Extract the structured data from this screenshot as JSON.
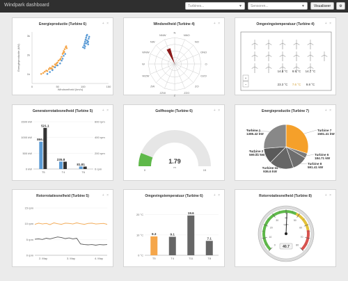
{
  "app": {
    "title": "Windpark dashboard"
  },
  "toolbar": {
    "select1": {
      "placeholder": "Turbines..."
    },
    "select2": {
      "placeholder": "Sensoren..."
    },
    "visualize_label": "Visualiseer",
    "settings_icon": "gear-icon"
  },
  "panels": [
    {
      "title": "Energieproductie (Turbine 6)"
    },
    {
      "title": "Windsnelheid (Turbine 4)"
    },
    {
      "title": "Omgevingstemperatuur (Turbine 4)"
    },
    {
      "title": "Generatorrotatiesnelheid (Turbine 5)"
    },
    {
      "title": "Golfhoogte (Turbine 6)"
    },
    {
      "title": "Energieproductie (Turbine 7)"
    },
    {
      "title": "Rotorrotatiesnelheid (Turbine 5)"
    },
    {
      "title": "Omgevingstemperatuur (Turbine 6)"
    },
    {
      "title": "Rotorrotatiesnelheid (Turbine 8)"
    }
  ],
  "panel_controls": "+ ×",
  "chart_data": [
    {
      "type": "scatter",
      "title": "Energieproductie (Turbine 6)",
      "xlabel": "Windsnelheid (km/u)",
      "ylabel": "Energieproductie (kW)",
      "x_ticks": [
        "0",
        "50",
        "100",
        "150"
      ],
      "y_ticks": [
        "1k",
        "2k",
        "3k"
      ],
      "xlim": [
        0,
        150
      ],
      "ylim": [
        500,
        3200
      ],
      "series": [
        {
          "color": "#f5a64a",
          "points": [
            [
              18,
              1000
            ],
            [
              22,
              1050
            ],
            [
              25,
              1120
            ],
            [
              28,
              1180
            ],
            [
              30,
              1150
            ],
            [
              33,
              1250
            ],
            [
              35,
              1320
            ],
            [
              37,
              1280
            ],
            [
              40,
              1400
            ],
            [
              42,
              1380
            ],
            [
              45,
              1500
            ],
            [
              47,
              1450
            ],
            [
              50,
              1600
            ],
            [
              52,
              1700
            ],
            [
              55,
              1750
            ],
            [
              58,
              1900
            ],
            [
              60,
              2050
            ],
            [
              62,
              2200
            ],
            [
              64,
              2300
            ],
            [
              66,
              2400
            ],
            [
              40,
              1250
            ],
            [
              48,
              1550
            ],
            [
              56,
              1800
            ],
            [
              63,
              2150
            ],
            [
              38,
              1300
            ],
            [
              67,
              2450
            ],
            [
              68,
              2350
            ],
            [
              61,
              2100
            ]
          ]
        },
        {
          "color": "#5b9bd5",
          "points": [
            [
              30,
              1000
            ],
            [
              35,
              1100
            ],
            [
              40,
              1200
            ],
            [
              45,
              1350
            ],
            [
              50,
              1450
            ],
            [
              55,
              1550
            ],
            [
              58,
              1700
            ],
            [
              60,
              1800
            ],
            [
              62,
              1950
            ],
            [
              65,
              2050
            ],
            [
              100,
              2400
            ],
            [
              102,
              2500
            ],
            [
              103,
              2600
            ],
            [
              104,
              2700
            ],
            [
              105,
              2800
            ],
            [
              106,
              2900
            ],
            [
              107,
              3000
            ],
            [
              108,
              2750
            ],
            [
              109,
              2650
            ],
            [
              110,
              2550
            ],
            [
              111,
              2850
            ],
            [
              112,
              2950
            ],
            [
              104,
              2450
            ],
            [
              108,
              3050
            ],
            [
              103,
              2350
            ],
            [
              110,
              2700
            ],
            [
              106,
              2600
            ]
          ]
        }
      ]
    },
    {
      "type": "polar",
      "title": "Windsnelheid (Turbine 4)",
      "directions": [
        "N",
        "NNO",
        "NO",
        "ONO",
        "O",
        "OZO",
        "ZO",
        "ZZO",
        "Z",
        "ZZW",
        "ZW",
        "WZW",
        "W",
        "WNW",
        "NW",
        "NNW"
      ],
      "arrow_direction": "NNW",
      "arrow_color": "#8b1a1a"
    },
    {
      "type": "map",
      "title": "Omgevingstemperatuur (Turbine 4)",
      "zoom_in": "+",
      "zoom_out": "−",
      "readings": [
        {
          "value": "14.9 °C",
          "color": "#333333"
        },
        {
          "value": "8.9 °C",
          "color": "#333333"
        },
        {
          "value": "14.7 °C",
          "color": "#333333"
        },
        {
          "value": "23.3 °C",
          "color": "#333333"
        },
        {
          "value": "7.6 °C",
          "color": "#d19a2a"
        },
        {
          "value": "9.8 °C",
          "color": "#333333"
        }
      ]
    },
    {
      "type": "bar",
      "title": "Generatorrotatiesnelheid (Turbine 5)",
      "categories": [
        "T5",
        "T4",
        "T6"
      ],
      "left_ticks": [
        "0 kW",
        "500 kW",
        "1000 kW",
        "1500 kW"
      ],
      "right_ticks": [
        "0 rpm",
        "200 rpm",
        "400 rpm",
        "600 rpm"
      ],
      "ylim_left": [
        0,
        1500
      ],
      "ylim_right": [
        0,
        600
      ],
      "series": [
        {
          "color": "#5b9bd5",
          "axis": "left",
          "values": [
            866.5,
            235.8,
            81.81
          ],
          "labels": [
            "866.5",
            "235.8",
            "81.81"
          ]
        },
        {
          "color": "#333333",
          "axis": "right",
          "values": [
            521.1,
            93,
            31
          ],
          "labels": [
            "521.1",
            "",
            ""
          ]
        }
      ]
    },
    {
      "type": "gauge",
      "title": "Golfhoogte (Turbine 6)",
      "value": 1.79,
      "value_label": "1.79",
      "unit": "m",
      "min": 0,
      "max": 15,
      "min_label": "0",
      "max_label": "15",
      "color": "#5fb94a"
    },
    {
      "type": "pie",
      "title": "Energieproductie (Turbine 7)",
      "slices": [
        {
          "label": "Turbine 7",
          "value": 1581.41,
          "text": "1581.41 kW",
          "color": "#f5a02a"
        },
        {
          "label": "Turbine 6",
          "value": 184.71,
          "text": "184.71 kW",
          "color": "#7a7a7a"
        },
        {
          "label": "Turbine 8",
          "value": 591.41,
          "text": "591.41 kW",
          "color": "#6e6e6e"
        },
        {
          "label": "Turbine 11",
          "value": 936.6,
          "text": "936.6 kW",
          "color": "#666666"
        },
        {
          "label": "Turbine 2",
          "value": 599.81,
          "text": "599.81 kW",
          "color": "#5a5a5a"
        },
        {
          "label": "Turbine 1",
          "value": 1385.42,
          "text": "1385.42 kW",
          "color": "#888888"
        }
      ]
    },
    {
      "type": "line",
      "title": "Rotorrotatiesnelheid (Turbine 5)",
      "y_ticks": [
        "0 rpm",
        "5 rpm",
        "10 rpm",
        "15 rpm"
      ],
      "x_ticks": [
        "2. May",
        "3. May",
        "4. May"
      ],
      "ylim": [
        0,
        15
      ],
      "series": [
        {
          "color": "#f5a64a",
          "values": [
            9.8,
            10.2,
            9.9,
            10.1,
            9.7,
            10.3,
            10,
            9.8,
            10.2,
            10.1,
            9.9,
            10.3,
            10,
            9.8,
            10.1,
            10.2,
            9.9,
            10,
            10.1,
            9.8
          ]
        },
        {
          "color": "#555555",
          "values": [
            5.1,
            5.2,
            5,
            5.4,
            5.2,
            5.5,
            5.8,
            5.6,
            5.3,
            5.5,
            5.2,
            5.4,
            3.6,
            3.4,
            3.3,
            3.4,
            3.2,
            3.4,
            3.3,
            3.4
          ]
        }
      ]
    },
    {
      "type": "bar",
      "title": "Omgevingstemperatuur (Turbine 6)",
      "categories": [
        "T5",
        "T4",
        "T11",
        "T8"
      ],
      "y_ticks": [
        "0 °C",
        "10 °C",
        "20 °C"
      ],
      "ylim": [
        0,
        24
      ],
      "values": [
        9.3,
        9.1,
        19.6,
        7.1
      ],
      "labels": [
        "9.3",
        "9.1",
        "19.6",
        "7.1"
      ],
      "colors": [
        "#f5a64a",
        "#666666",
        "#666666",
        "#666666"
      ]
    },
    {
      "type": "gauge",
      "title": "Rotorrotatiesnelheid (Turbine 8)",
      "value": 40.7,
      "value_label": "40.7",
      "unit": "rpm",
      "min": 0,
      "max": 80,
      "tick_labels": [
        "0",
        "10",
        "20",
        "30",
        "40",
        "50",
        "60",
        "70",
        "80"
      ]
    }
  ]
}
